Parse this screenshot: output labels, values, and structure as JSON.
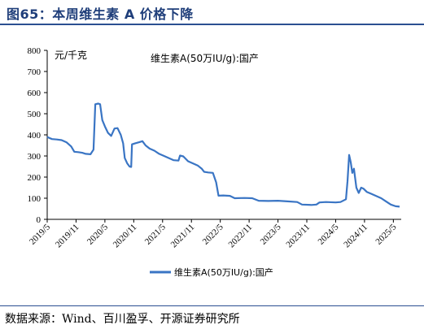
{
  "page": {
    "title": "图65：本周维生素 A 价格下降",
    "source": "数据来源：Wind、百川盈孚、开源证券研究所"
  },
  "chart_data": {
    "type": "line",
    "title": "维生素A(50万IU/g):国产",
    "ylabel": "元/千克",
    "ylim": [
      0,
      800
    ],
    "yticks": [
      0,
      100,
      200,
      300,
      400,
      500,
      600,
      700,
      800
    ],
    "xticks": [
      "2019/5",
      "2019/11",
      "2020/5",
      "2020/11",
      "2021/5",
      "2021/11",
      "2022/5",
      "2022/11",
      "2023/5",
      "2023/11",
      "2024/5",
      "2024/11",
      "2025/5"
    ],
    "legend": "bottom",
    "series": [
      {
        "name": "维生素A(50万IU/g):国产",
        "color": "#3a75c4",
        "points": [
          [
            "2019-05-01",
            390
          ],
          [
            "2019-05-15",
            385
          ],
          [
            "2019-06-01",
            380
          ],
          [
            "2019-07-01",
            378
          ],
          [
            "2019-08-01",
            375
          ],
          [
            "2019-09-01",
            365
          ],
          [
            "2019-10-01",
            345
          ],
          [
            "2019-10-20",
            320
          ],
          [
            "2019-11-15",
            318
          ],
          [
            "2019-12-10",
            315
          ],
          [
            "2020-01-01",
            310
          ],
          [
            "2020-02-01",
            308
          ],
          [
            "2020-02-20",
            330
          ],
          [
            "2020-03-01",
            545
          ],
          [
            "2020-03-20",
            548
          ],
          [
            "2020-04-01",
            545
          ],
          [
            "2020-04-15",
            470
          ],
          [
            "2020-05-01",
            440
          ],
          [
            "2020-05-20",
            410
          ],
          [
            "2020-06-10",
            395
          ],
          [
            "2020-07-01",
            430
          ],
          [
            "2020-07-20",
            432
          ],
          [
            "2020-08-10",
            400
          ],
          [
            "2020-08-25",
            360
          ],
          [
            "2020-09-05",
            290
          ],
          [
            "2020-09-20",
            265
          ],
          [
            "2020-10-05",
            250
          ],
          [
            "2020-10-15",
            248
          ],
          [
            "2020-10-20",
            355
          ],
          [
            "2020-11-10",
            360
          ],
          [
            "2020-12-05",
            365
          ],
          [
            "2020-12-25",
            370
          ],
          [
            "2021-01-15",
            350
          ],
          [
            "2021-02-10",
            335
          ],
          [
            "2021-03-10",
            325
          ],
          [
            "2021-04-10",
            310
          ],
          [
            "2021-05-10",
            300
          ],
          [
            "2021-06-10",
            290
          ],
          [
            "2021-07-10",
            280
          ],
          [
            "2021-08-10",
            278
          ],
          [
            "2021-08-20",
            302
          ],
          [
            "2021-09-10",
            298
          ],
          [
            "2021-10-10",
            275
          ],
          [
            "2021-11-10",
            265
          ],
          [
            "2021-12-10",
            255
          ],
          [
            "2022-01-05",
            240
          ],
          [
            "2022-01-20",
            225
          ],
          [
            "2022-02-15",
            222
          ],
          [
            "2022-03-15",
            220
          ],
          [
            "2022-04-05",
            175
          ],
          [
            "2022-04-20",
            112
          ],
          [
            "2022-05-20",
            113
          ],
          [
            "2022-07-01",
            111
          ],
          [
            "2022-08-01",
            100
          ],
          [
            "2022-10-01",
            101
          ],
          [
            "2022-11-20",
            100
          ],
          [
            "2023-01-01",
            88
          ],
          [
            "2023-03-01",
            87
          ],
          [
            "2023-05-01",
            88
          ],
          [
            "2023-07-01",
            85
          ],
          [
            "2023-09-01",
            82
          ],
          [
            "2023-10-01",
            70
          ],
          [
            "2023-12-01",
            68
          ],
          [
            "2024-01-01",
            70
          ],
          [
            "2024-01-20",
            80
          ],
          [
            "2024-03-01",
            82
          ],
          [
            "2024-05-01",
            80
          ],
          [
            "2024-06-01",
            82
          ],
          [
            "2024-07-05",
            95
          ],
          [
            "2024-07-15",
            180
          ],
          [
            "2024-07-25",
            305
          ],
          [
            "2024-08-05",
            270
          ],
          [
            "2024-08-15",
            220
          ],
          [
            "2024-08-25",
            240
          ],
          [
            "2024-09-10",
            150
          ],
          [
            "2024-09-25",
            125
          ],
          [
            "2024-10-10",
            150
          ],
          [
            "2024-10-25",
            145
          ],
          [
            "2024-11-15",
            130
          ],
          [
            "2024-12-15",
            120
          ],
          [
            "2025-01-15",
            110
          ],
          [
            "2025-02-15",
            100
          ],
          [
            "2025-03-15",
            85
          ],
          [
            "2025-04-15",
            70
          ],
          [
            "2025-05-15",
            62
          ],
          [
            "2025-06-10",
            60
          ]
        ]
      }
    ]
  }
}
